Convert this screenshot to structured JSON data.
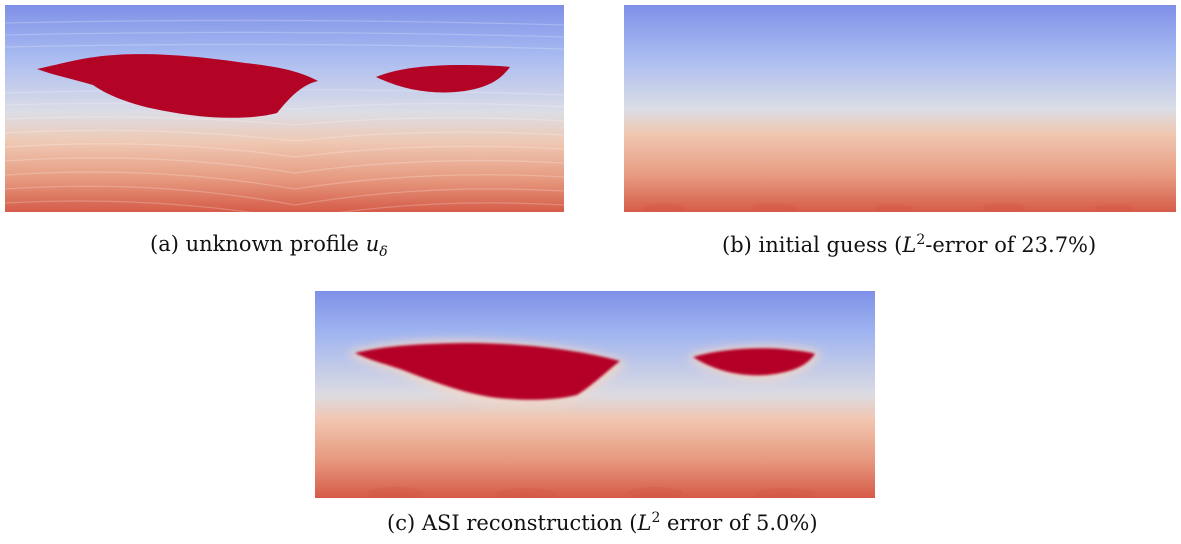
{
  "figure": {
    "panels": [
      {
        "label": "(a)",
        "caption_text": "unknown profile",
        "caption_symbol": "u",
        "caption_subscript": "δ",
        "colormap": "coolwarm"
      },
      {
        "label": "(b)",
        "caption_prefix": "initial guess (",
        "caption_symbol": "L",
        "caption_sup": "2",
        "caption_suffix": "-error of 23.7%)",
        "colormap": "coolwarm"
      },
      {
        "label": "(c)",
        "caption_prefix": "ASI reconstruction (",
        "caption_symbol": "L",
        "caption_sup": "2",
        "caption_suffix": " error of 5.0%)",
        "colormap": "coolwarm"
      }
    ],
    "colors": {
      "top_blue": "#7f90e8",
      "mid_pale": "#dcdde5",
      "bottom_red": "#d55b48",
      "inclusion_red": "#b40426"
    }
  }
}
